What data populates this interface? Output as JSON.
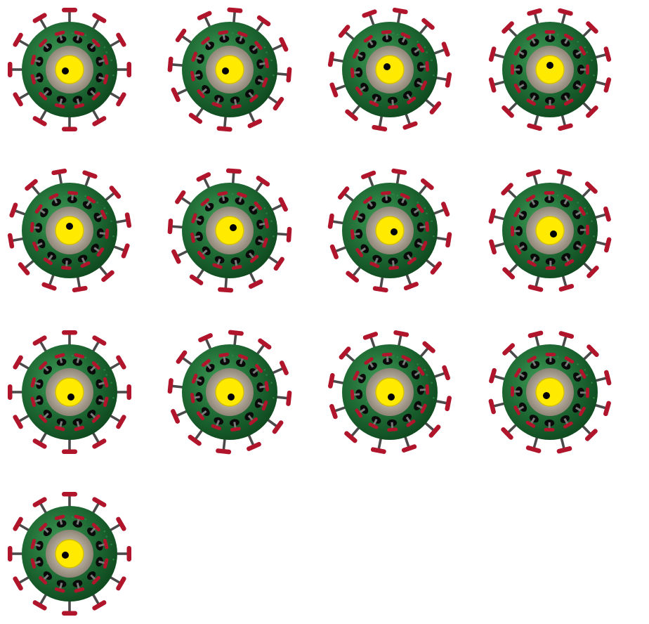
{
  "sprite_sheet": {
    "background_color": "#ffffff",
    "colors": {
      "body_dark": "#0f4a1f",
      "body_mid": "#1f6b35",
      "body_light": "#3f9a55",
      "speckle": "#2c8a43",
      "pore": "#0a0a0a",
      "spike_stem": "#4a4a4a",
      "spike_cap": "#b0152b",
      "ring": "#a39a8c",
      "eye_yellow": "#ffea00",
      "eye_outline": "#d4c000",
      "pupil": "#000000"
    },
    "frames": [
      {
        "frame": 1,
        "spike_rotation_deg": 0,
        "pupil": "left"
      },
      {
        "frame": 2,
        "spike_rotation_deg": 5,
        "pupil": "left"
      },
      {
        "frame": 3,
        "spike_rotation_deg": 10,
        "pupil": "up-left"
      },
      {
        "frame": 4,
        "spike_rotation_deg": 15,
        "pupil": "up"
      },
      {
        "frame": 5,
        "spike_rotation_deg": 20,
        "pupil": "up"
      },
      {
        "frame": 6,
        "spike_rotation_deg": 4,
        "pupil": "up-right"
      },
      {
        "frame": 7,
        "spike_rotation_deg": 9,
        "pupil": "right"
      },
      {
        "frame": 8,
        "spike_rotation_deg": 14,
        "pupil": "down-right"
      },
      {
        "frame": 9,
        "spike_rotation_deg": 0,
        "pupil": "down"
      },
      {
        "frame": 10,
        "spike_rotation_deg": 6,
        "pupil": "down"
      },
      {
        "frame": 11,
        "spike_rotation_deg": 11,
        "pupil": "down"
      },
      {
        "frame": 12,
        "spike_rotation_deg": 16,
        "pupil": "down-left"
      },
      {
        "frame": 13,
        "spike_rotation_deg": 0,
        "pupil": "left"
      }
    ]
  }
}
